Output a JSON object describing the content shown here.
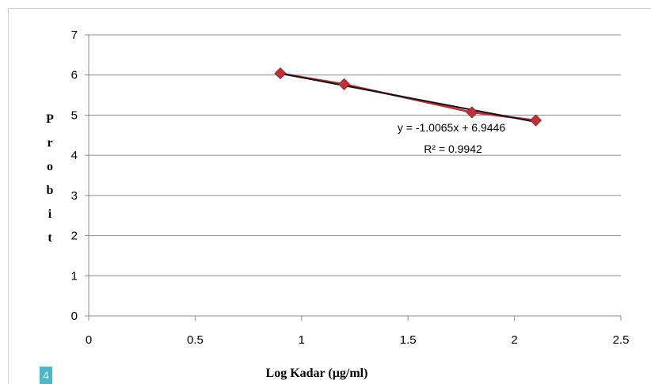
{
  "figure_badge": "4",
  "colors": {
    "series": "#c0303a",
    "series_marker": "#c0303a",
    "trendline": "#111111",
    "grid": "#8c8c8c",
    "badge": "#4db8c6"
  },
  "chart_data": {
    "type": "scatter",
    "title": "",
    "xlabel": "Log Kadar (µg/ml)",
    "ylabel": "Probit",
    "xlim": [
      0,
      2.5
    ],
    "ylim": [
      0,
      7
    ],
    "x_ticks": [
      "0",
      "0.5",
      "1",
      "1.5",
      "2",
      "2.5"
    ],
    "y_ticks": [
      "0",
      "1",
      "2",
      "3",
      "4",
      "5",
      "6",
      "7"
    ],
    "grid": "horizontal",
    "series": [
      {
        "x": [
          0.9,
          1.2,
          1.8,
          2.1
        ],
        "y": [
          6.04,
          5.77,
          5.07,
          4.87
        ],
        "marker": "diamond",
        "connected": true
      }
    ],
    "trendline": {
      "type": "linear",
      "slope": -1.0065,
      "intercept": 6.9446,
      "x_range": [
        0.9,
        2.1
      ]
    },
    "annotations": {
      "equation": "y = -1.0065x + 6.9446",
      "r_squared": "R² = 0.9942"
    }
  }
}
